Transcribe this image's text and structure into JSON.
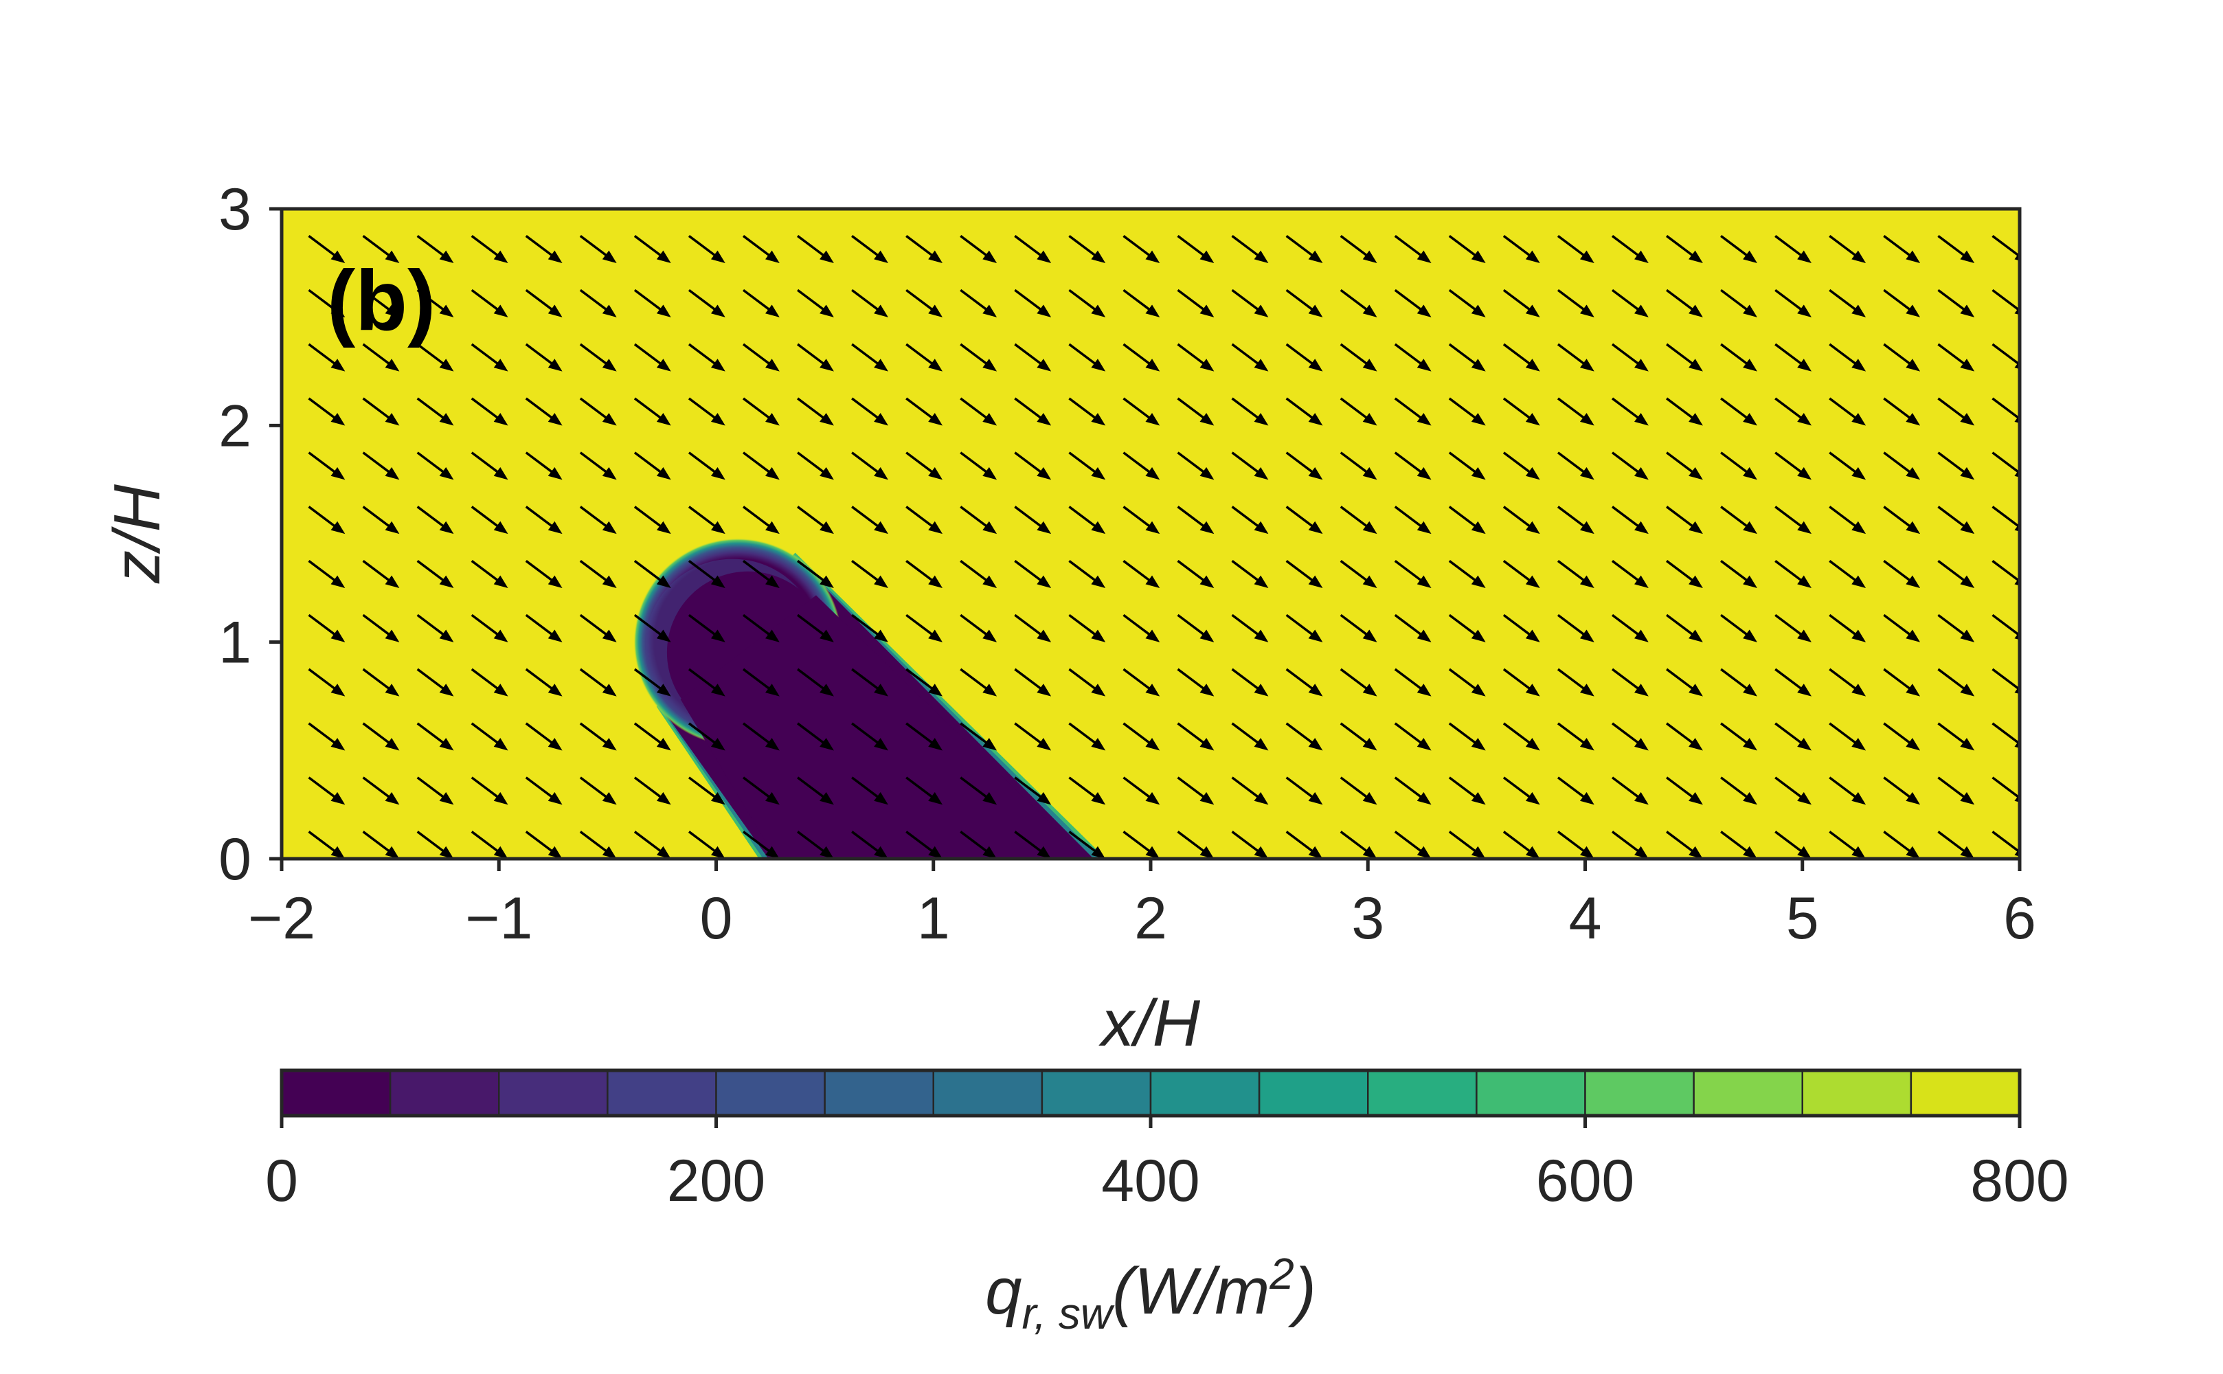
{
  "chart_data": {
    "type": "heatmap",
    "panel_label": "(b)",
    "xlabel": "x/H",
    "ylabel": "z/H",
    "xlim": [
      -2,
      6
    ],
    "ylim": [
      0,
      3
    ],
    "x_ticks": [
      -2,
      -1,
      0,
      1,
      2,
      3,
      4,
      5,
      6
    ],
    "x_tick_labels": [
      "−2",
      "−1",
      "0",
      "1",
      "2",
      "3",
      "4",
      "5",
      "6"
    ],
    "y_ticks": [
      0,
      1,
      2,
      3
    ],
    "y_tick_labels": [
      "0",
      "1",
      "2",
      "3"
    ],
    "field": {
      "quantity": "q_r,sw",
      "background_value": 800,
      "shadow_value": 0,
      "shadow_region": {
        "shape": "rounded slanted band (tree canopy shadow)",
        "cap_center": [
          0.1,
          1.0
        ],
        "cap_radius": 0.48,
        "base_x_range": [
          0.25,
          1.75
        ],
        "direction": "down-right"
      }
    },
    "vectors": {
      "type": "quiver",
      "direction": [
        0.8,
        -0.6
      ],
      "x_range": [
        -2,
        6
      ],
      "y_range": [
        0,
        3
      ],
      "columns": 32,
      "rows": 12,
      "color": "#000000"
    },
    "colorbar": {
      "label_main": "q",
      "label_sub": "r, sw",
      "label_unit_open": "(W/m",
      "label_unit_exp": "2",
      "label_unit_close": ")",
      "min": 0,
      "max": 800,
      "levels": [
        0,
        50,
        100,
        150,
        200,
        250,
        300,
        350,
        400,
        450,
        500,
        550,
        600,
        650,
        700,
        750,
        800
      ],
      "colors": [
        "#440154",
        "#48186a",
        "#472d7b",
        "#424086",
        "#3b528b",
        "#33638d",
        "#2c728e",
        "#26828e",
        "#21918c",
        "#1fa088",
        "#28ae80",
        "#3fbc73",
        "#5ec962",
        "#84d44b",
        "#addc30",
        "#d8e219",
        "#ece51b"
      ],
      "ticks": [
        0,
        200,
        400,
        600,
        800
      ],
      "tick_labels": [
        "0",
        "200",
        "400",
        "600",
        "800"
      ]
    }
  }
}
